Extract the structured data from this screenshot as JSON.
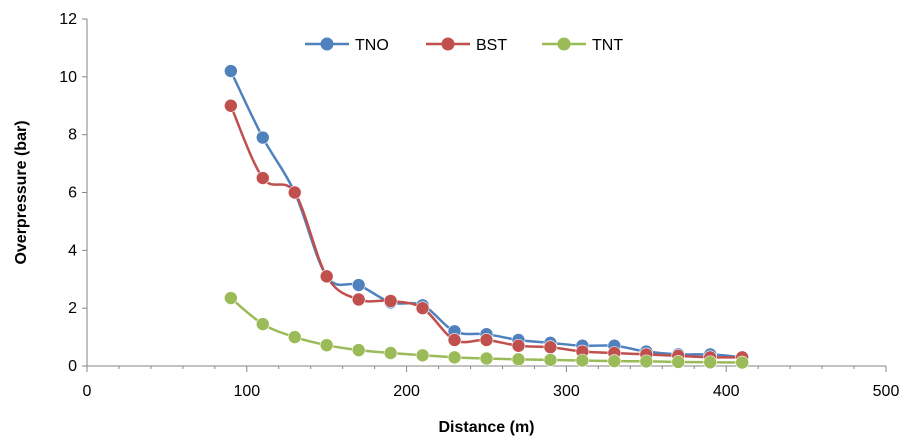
{
  "chart_data": {
    "type": "line",
    "title": "",
    "xlabel": "Distance (m)",
    "ylabel": "Overpressure (bar)",
    "xlim": [
      0,
      500
    ],
    "ylim": [
      0,
      12
    ],
    "x_ticks": [
      0,
      100,
      200,
      300,
      400,
      500
    ],
    "y_ticks": [
      0,
      2,
      4,
      6,
      8,
      10,
      12
    ],
    "grid": false,
    "smooth": true,
    "legend_position": "top-center",
    "x": [
      90,
      110,
      130,
      150,
      170,
      190,
      210,
      230,
      250,
      270,
      290,
      310,
      330,
      350,
      370,
      390,
      410
    ],
    "series": [
      {
        "name": "TNO",
        "color": "#4F81BD",
        "values": [
          10.2,
          7.9,
          6.0,
          3.1,
          2.8,
          2.2,
          2.1,
          1.2,
          1.1,
          0.9,
          0.8,
          0.7,
          0.7,
          0.5,
          0.4,
          0.4,
          0.3
        ]
      },
      {
        "name": "BST",
        "color": "#C0504D",
        "values": [
          9.0,
          6.5,
          6.0,
          3.1,
          2.3,
          2.25,
          2.0,
          0.9,
          0.9,
          0.7,
          0.65,
          0.5,
          0.45,
          0.4,
          0.35,
          0.3,
          0.3
        ]
      },
      {
        "name": "TNT",
        "color": "#9BBB59",
        "values": [
          2.35,
          1.45,
          1.0,
          0.72,
          0.55,
          0.45,
          0.37,
          0.3,
          0.26,
          0.23,
          0.21,
          0.19,
          0.17,
          0.16,
          0.14,
          0.13,
          0.12
        ]
      }
    ]
  }
}
